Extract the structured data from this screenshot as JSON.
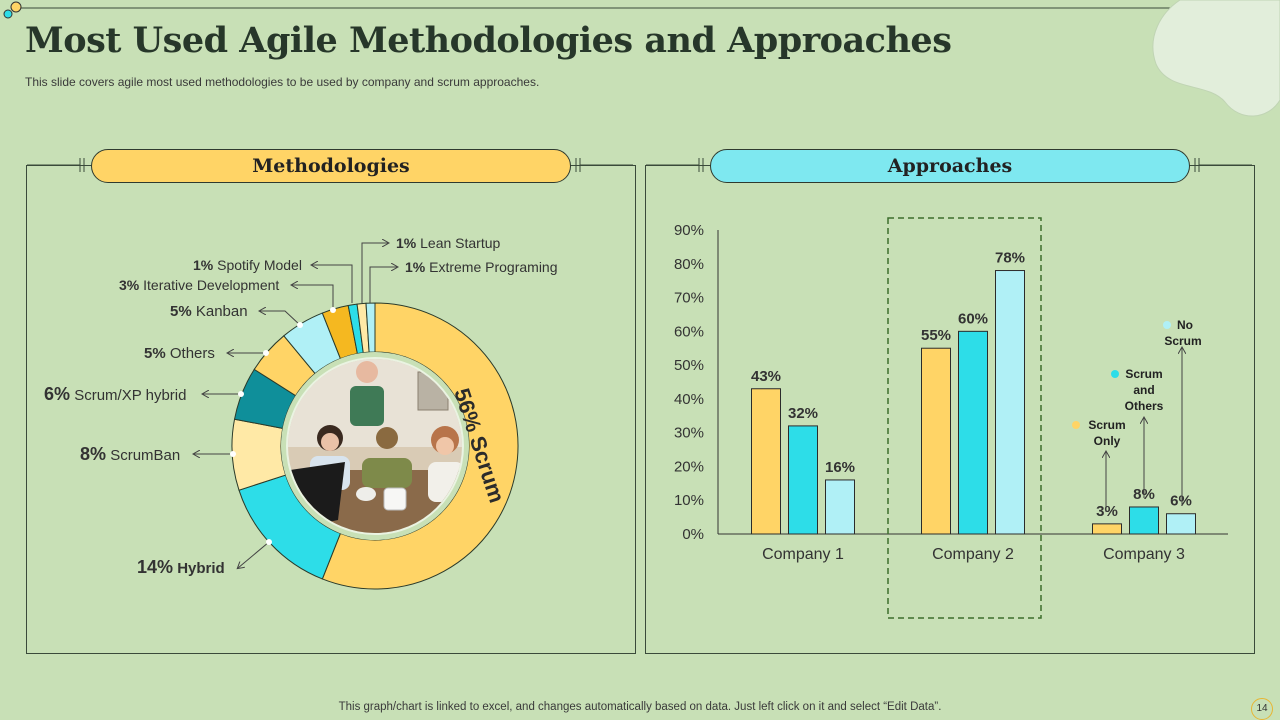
{
  "title": "Most Used Agile Methodologies and Approaches",
  "subtitle": "This slide covers agile most used methodologies to be used by company and scrum approaches.",
  "footer": "This graph/chart is linked to excel, and changes automatically based on data. Just left click on it and select “Edit Data”.",
  "page_number": "14",
  "colors": {
    "background": "#c8e0b6",
    "yellow": "#ffd466",
    "cyan": "#2ddde8",
    "light_cyan": "#b0f0f6",
    "teal": "#0f8f9a",
    "light_yellow": "#ffe9a6"
  },
  "left_panel": {
    "header": "Methodologies"
  },
  "right_panel": {
    "header": "Approaches"
  },
  "chart_data": [
    {
      "type": "pie",
      "subtype": "donut",
      "slices": [
        {
          "pct": "56%",
          "label": "Scrum",
          "value": 56,
          "color": "#ffd466"
        },
        {
          "pct": "14%",
          "label": "Hybrid",
          "value": 14,
          "color": "#2ddde8"
        },
        {
          "pct": "8%",
          "label": "ScrumBan",
          "value": 8,
          "color": "#ffe9a6"
        },
        {
          "pct": "6%",
          "label": "Scrum/XP hybrid",
          "value": 6,
          "color": "#0f8f9a"
        },
        {
          "pct": "5%",
          "label": "Others",
          "value": 5,
          "color": "#ffd466"
        },
        {
          "pct": "5%",
          "label": "Kanban",
          "value": 5,
          "color": "#b0f0f6"
        },
        {
          "pct": "3%",
          "label": "Iterative  Development",
          "value": 3,
          "color": "#f5b820"
        },
        {
          "pct": "1%",
          "label": "Spotify Model",
          "value": 1,
          "color": "#2ddde8"
        },
        {
          "pct": "1%",
          "label": "Lean Startup",
          "value": 1,
          "color": "#ffe9a6"
        },
        {
          "pct": "1%",
          "label": "Extreme Programing",
          "value": 1,
          "color": "#b0f0f6"
        }
      ]
    },
    {
      "type": "bar",
      "categories": [
        "Company 1",
        "Company 2",
        "Company 3"
      ],
      "series": [
        {
          "name": "Scrum Only",
          "values": [
            43,
            55,
            3
          ],
          "color": "#ffd466"
        },
        {
          "name": "Scrum and Others",
          "values": [
            32,
            60,
            8
          ],
          "color": "#2ddde8"
        },
        {
          "name": "No Scrum",
          "values": [
            16,
            78,
            6
          ],
          "color": "#b0f0f6"
        }
      ],
      "ylim": [
        0,
        90
      ],
      "yticks": [
        "0%",
        "10%",
        "20%",
        "30%",
        "40%",
        "50%",
        "60%",
        "70%",
        "80%",
        "90%"
      ],
      "data_labels": [
        [
          "43%",
          "55%",
          "3%"
        ],
        [
          "32%",
          "60%",
          "8%"
        ],
        [
          "16%",
          "78%",
          "6%"
        ]
      ],
      "highlighted_category": "Company 2"
    }
  ]
}
